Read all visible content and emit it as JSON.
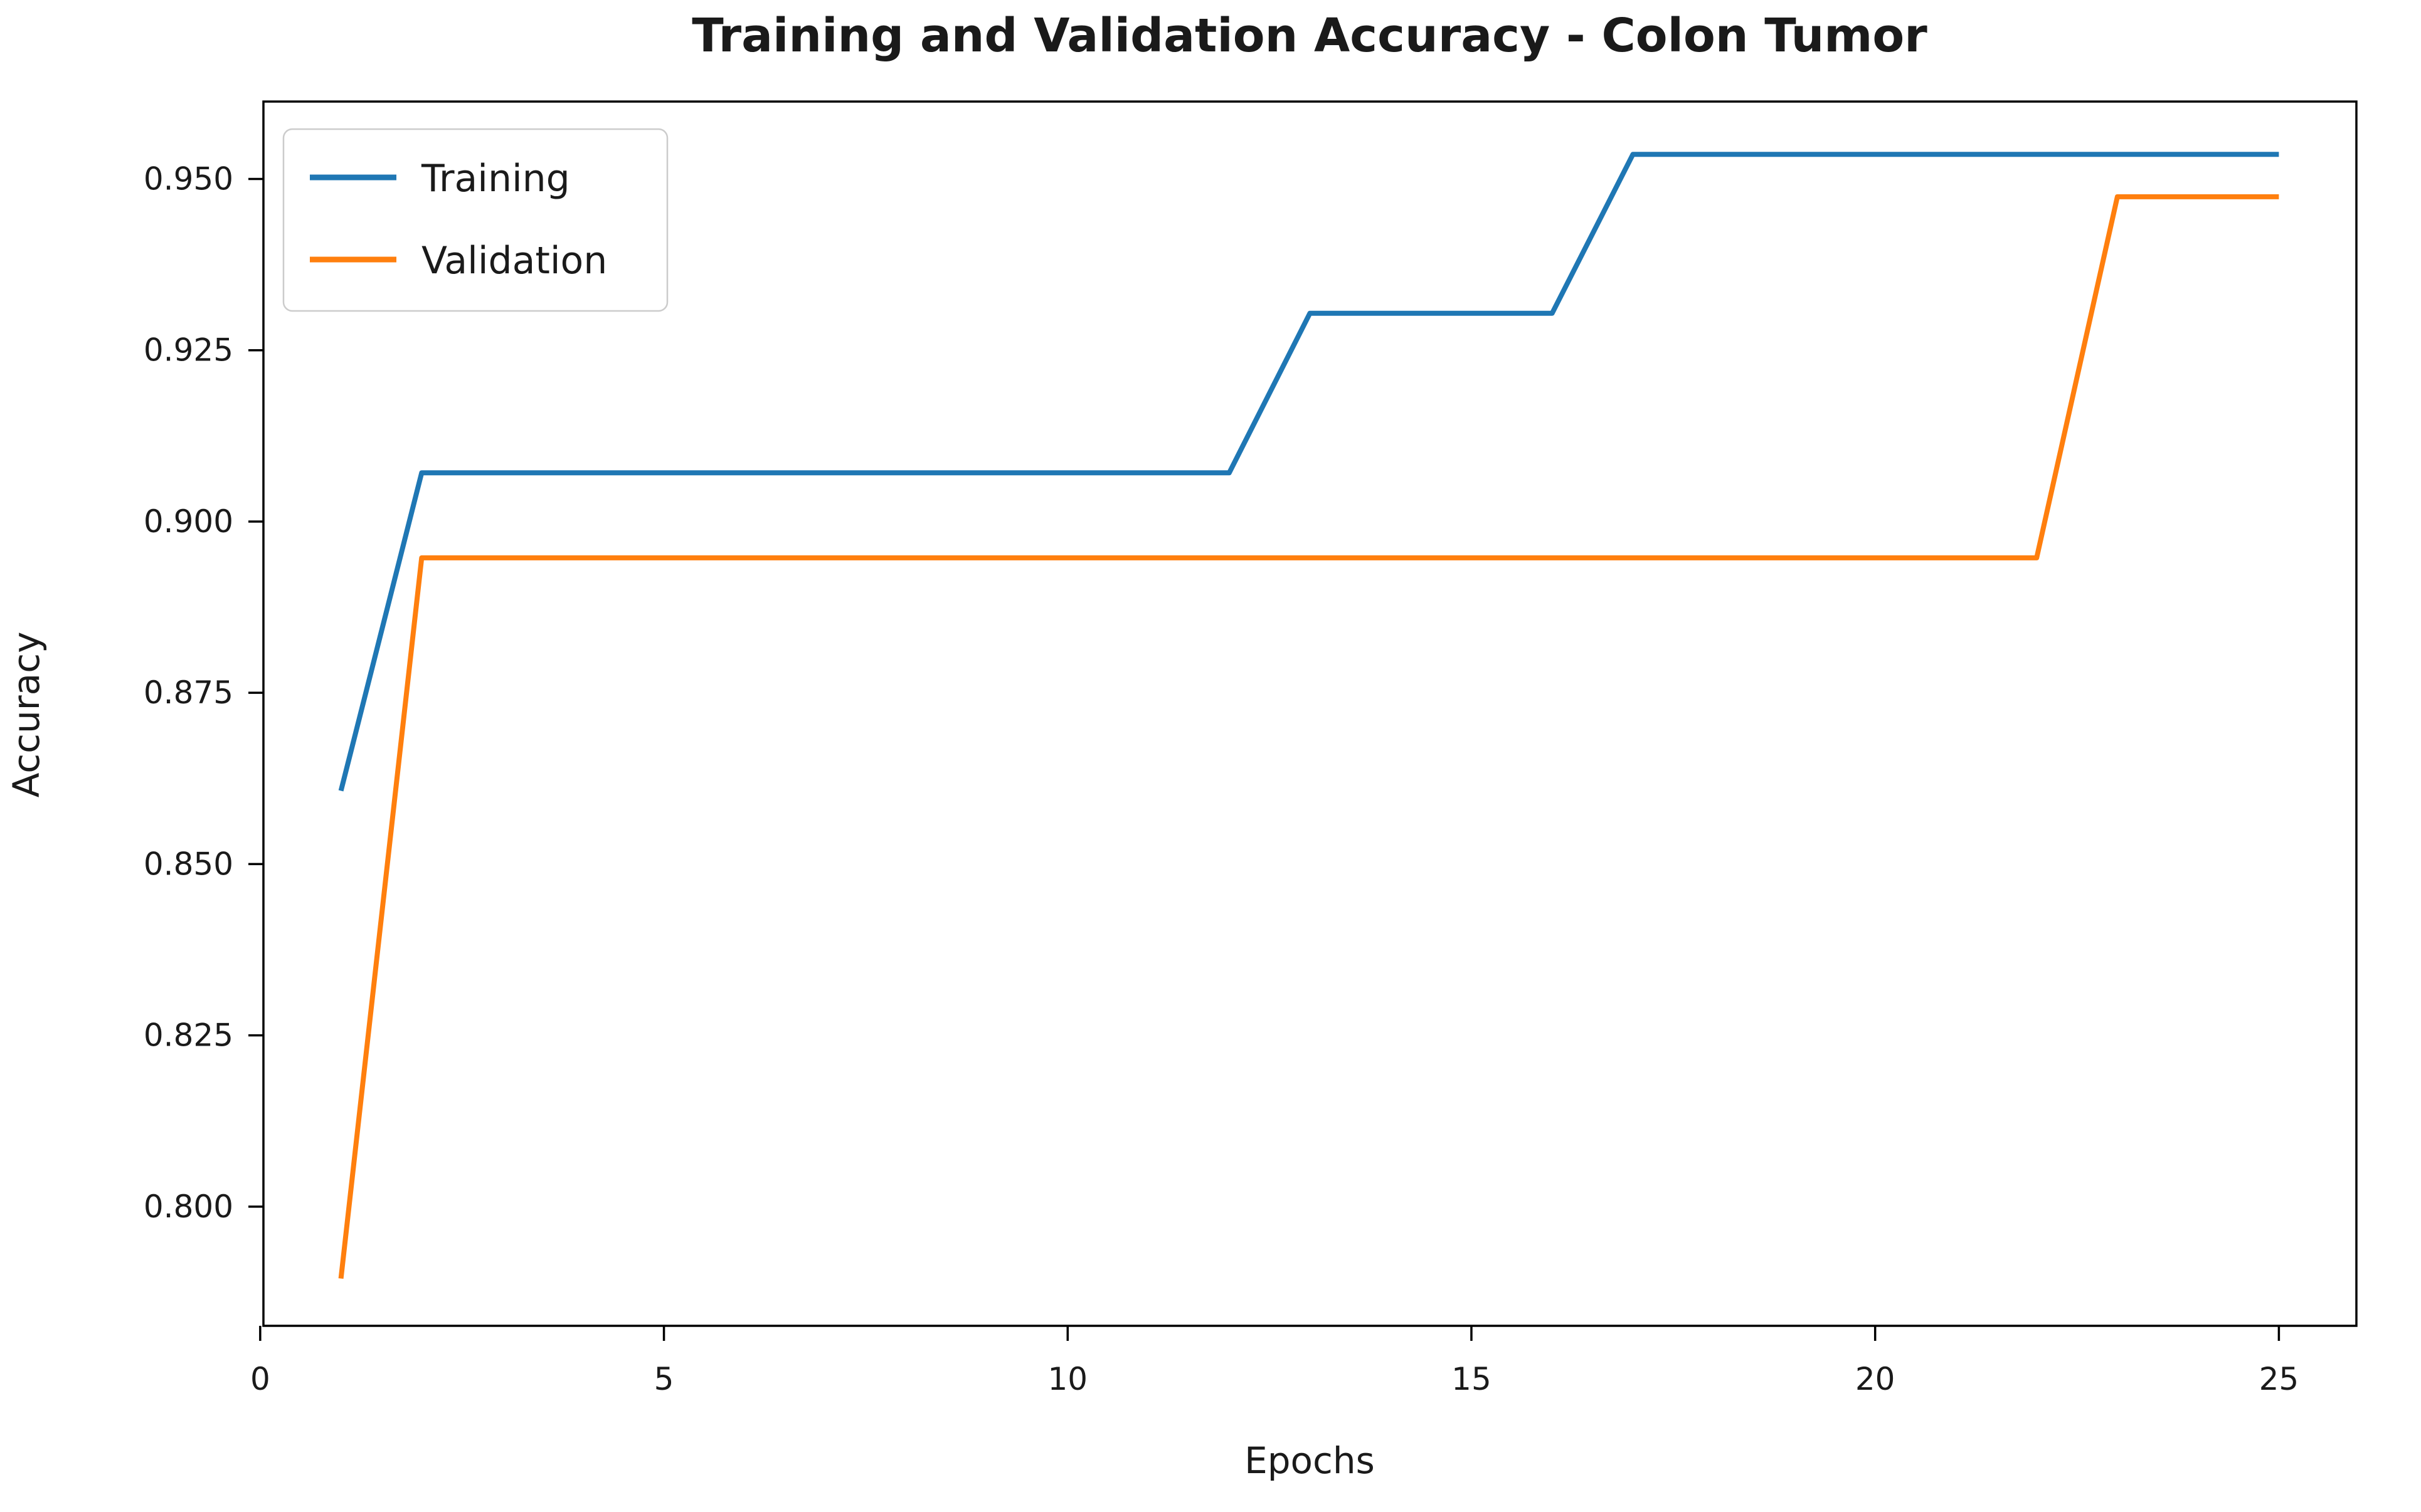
{
  "chart_data": {
    "type": "line",
    "title": "Training and Validation Accuracy - Colon Tumor",
    "xlabel": "Epochs",
    "ylabel": "Accuracy",
    "x": [
      1,
      2,
      3,
      4,
      5,
      6,
      7,
      8,
      9,
      10,
      11,
      12,
      13,
      14,
      15,
      16,
      17,
      18,
      19,
      20,
      21,
      22,
      23,
      24,
      25
    ],
    "series": [
      {
        "name": "Training",
        "color": "#1f77b4",
        "values": [
          0.8607,
          0.9071,
          0.9071,
          0.9071,
          0.9071,
          0.9071,
          0.9071,
          0.9071,
          0.9071,
          0.9071,
          0.9071,
          0.9071,
          0.9304,
          0.9304,
          0.9304,
          0.9304,
          0.9536,
          0.9536,
          0.9536,
          0.9536,
          0.9536,
          0.9536,
          0.9536,
          0.9536,
          0.9536
        ]
      },
      {
        "name": "Validation",
        "color": "#ff7f0e",
        "values": [
          0.7895,
          0.8947,
          0.8947,
          0.8947,
          0.8947,
          0.8947,
          0.8947,
          0.8947,
          0.8947,
          0.8947,
          0.8947,
          0.8947,
          0.8947,
          0.8947,
          0.8947,
          0.8947,
          0.8947,
          0.8947,
          0.8947,
          0.8947,
          0.8947,
          0.8947,
          0.9474,
          0.9474,
          0.9474
        ]
      }
    ],
    "xlim": [
      0.04,
      25.96
    ],
    "ylim": [
      0.7826,
      0.9613
    ],
    "xticks": [
      {
        "v": 0,
        "label": "0"
      },
      {
        "v": 5,
        "label": "5"
      },
      {
        "v": 10,
        "label": "10"
      },
      {
        "v": 15,
        "label": "15"
      },
      {
        "v": 20,
        "label": "20"
      },
      {
        "v": 25,
        "label": "25"
      }
    ],
    "yticks": [
      {
        "v": 0.8,
        "label": "0.800"
      },
      {
        "v": 0.825,
        "label": "0.825"
      },
      {
        "v": 0.85,
        "label": "0.850"
      },
      {
        "v": 0.875,
        "label": "0.875"
      },
      {
        "v": 0.9,
        "label": "0.900"
      },
      {
        "v": 0.925,
        "label": "0.925"
      },
      {
        "v": 0.95,
        "label": "0.950"
      }
    ],
    "grid": false,
    "legend": {
      "position": "upper left",
      "entries": [
        "Training",
        "Validation"
      ]
    }
  },
  "colors": {
    "axis": "#000000",
    "text": "#1a1a1a",
    "legend_border": "#cccccc",
    "background": "#ffffff"
  }
}
